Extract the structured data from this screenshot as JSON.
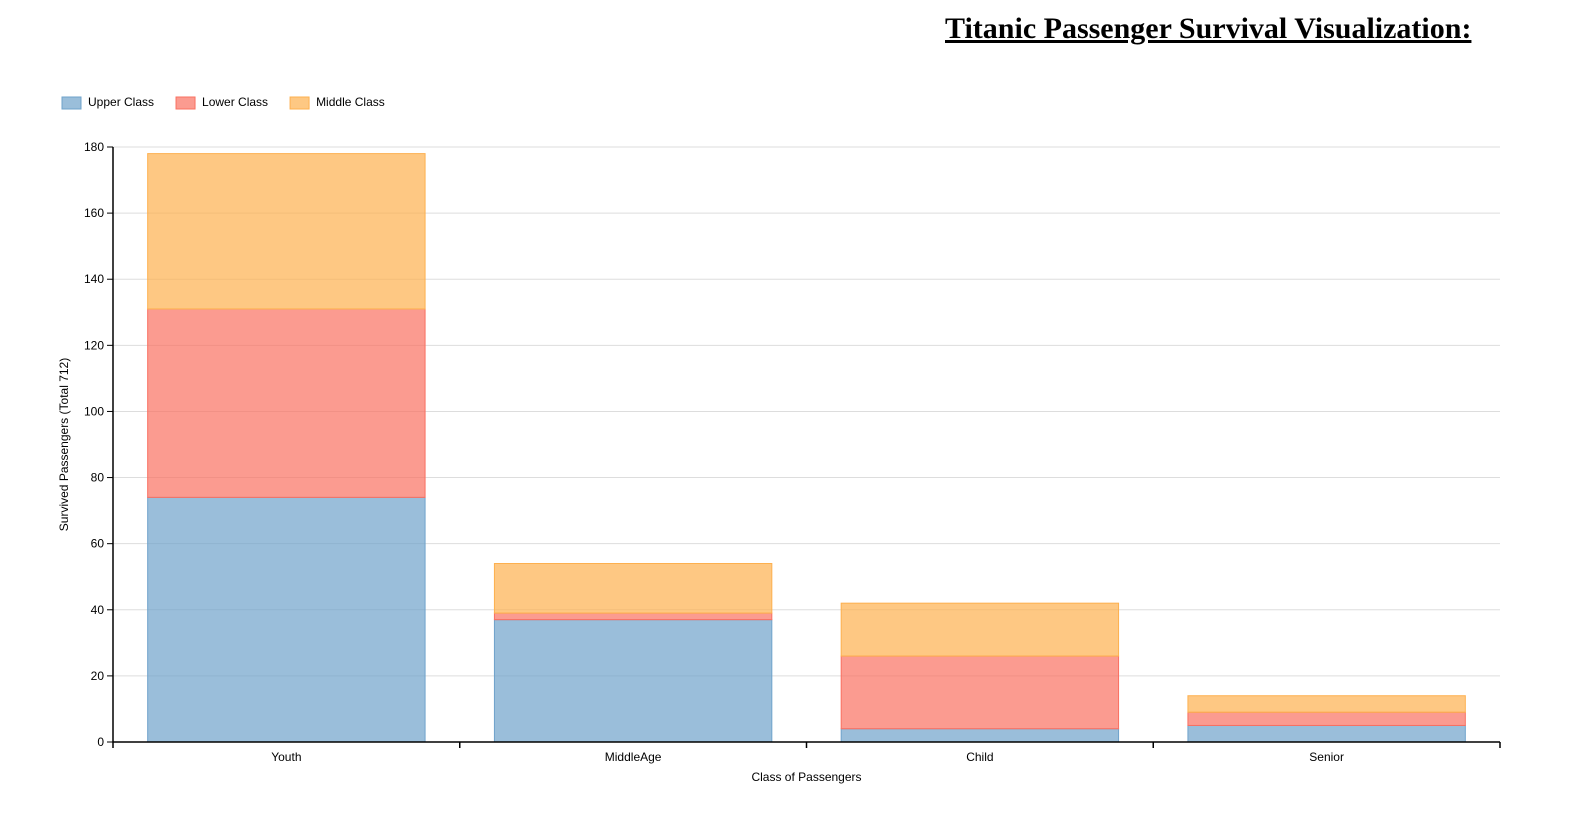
{
  "title": "Titanic Passenger Survival Visualization:",
  "chart_data": {
    "type": "bar",
    "stacked": true,
    "categories": [
      "Youth",
      "MiddleAge",
      "Child",
      "Senior"
    ],
    "series": [
      {
        "name": "Upper Class",
        "color": "#6fa3cb",
        "values": [
          74,
          37,
          4,
          5
        ]
      },
      {
        "name": "Lower Class",
        "color": "#fa7061",
        "values": [
          57,
          2,
          22,
          4
        ]
      },
      {
        "name": "Middle Class",
        "color": "#fdb04f",
        "values": [
          47,
          15,
          16,
          5
        ]
      }
    ],
    "xlabel": "Class of Passengers",
    "ylabel": "Survived Passengers (Total 712)",
    "ylim": [
      0,
      180
    ],
    "yticks": [
      0,
      20,
      40,
      60,
      80,
      100,
      120,
      140,
      160,
      180
    ],
    "grid": true,
    "legend_position": "top-left"
  }
}
